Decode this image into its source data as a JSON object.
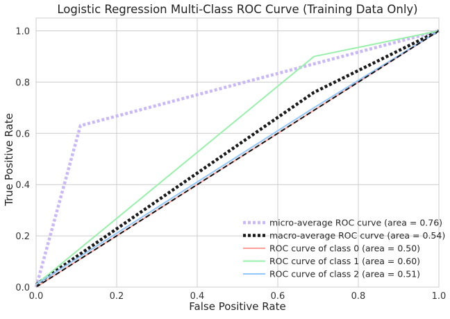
{
  "chart_data": {
    "type": "line",
    "title": "Logistic Regression Multi-Class ROC Curve (Training Data Only)",
    "xlabel": "False Positive Rate",
    "ylabel": "True Positive Rate",
    "xlim": [
      0.0,
      1.0
    ],
    "ylim": [
      0.0,
      1.05
    ],
    "xticks": [
      0.0,
      0.2,
      0.4,
      0.6,
      0.8,
      1.0
    ],
    "yticks": [
      0.0,
      0.2,
      0.4,
      0.6,
      0.8,
      1.0
    ],
    "xtick_labels": [
      "0.0",
      "0.2",
      "0.4",
      "0.6",
      "0.8",
      "1.0"
    ],
    "ytick_labels": [
      "0.0",
      "0.2",
      "0.4",
      "0.6",
      "0.8",
      "1.0"
    ],
    "grid": true,
    "legend_position": "bottom-right",
    "series": [
      {
        "name": "micro-average ROC curve (area = 0.76)",
        "style": "dotted-thick",
        "color": "#c9b8f5",
        "x": [
          0.0,
          0.11,
          1.0
        ],
        "y": [
          0.0,
          0.63,
          1.0
        ]
      },
      {
        "name": "macro-average ROC curve (area = 0.54)",
        "style": "dotted-thick",
        "color": "#1a1a1a",
        "x": [
          0.0,
          0.69,
          1.0
        ],
        "y": [
          0.01,
          0.76,
          1.0
        ]
      },
      {
        "name": "ROC curve of class 0 (area = 0.50)",
        "style": "solid",
        "color": "#ff9f9a",
        "x": [
          0.0,
          1.0
        ],
        "y": [
          0.0,
          1.0
        ]
      },
      {
        "name": "ROC curve of class 1 (area = 0.60)",
        "style": "solid",
        "color": "#97f0aa",
        "x": [
          0.0,
          0.69,
          1.0
        ],
        "y": [
          0.01,
          0.9,
          1.0
        ]
      },
      {
        "name": "ROC curve of class 2 (area = 0.51)",
        "style": "solid",
        "color": "#92c6ff",
        "x": [
          0.0,
          0.69,
          1.0
        ],
        "y": [
          0.01,
          0.7,
          1.0
        ]
      }
    ],
    "reference_line": {
      "style": "dashed",
      "color": "#111111",
      "x": [
        0.0,
        1.0
      ],
      "y": [
        0.0,
        1.0
      ]
    }
  }
}
